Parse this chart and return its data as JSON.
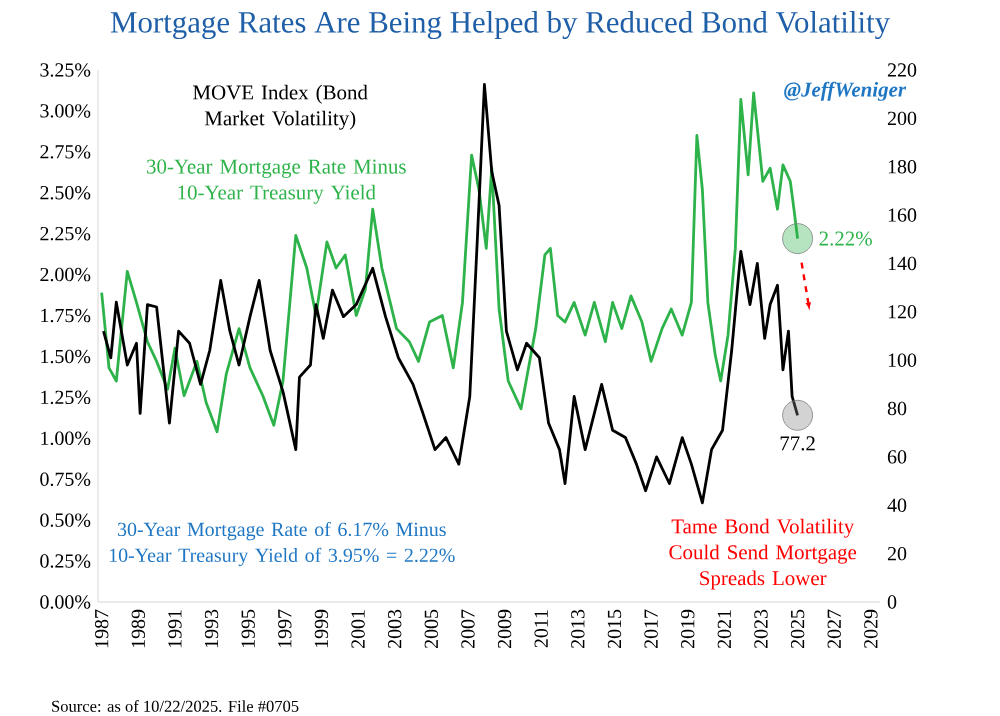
{
  "chart_data": {
    "type": "line",
    "title": "Mortgage Rates Are Being Helped by Reduced Bond Volatility",
    "xlim": [
      1986.8,
      2029.5
    ],
    "xticks": [
      1987,
      1989,
      1991,
      1993,
      1995,
      1997,
      1999,
      2001,
      2003,
      2005,
      2007,
      2009,
      2011,
      2013,
      2015,
      2017,
      2019,
      2021,
      2023,
      2025,
      2027,
      2029
    ],
    "ylim": [
      0,
      3.25
    ],
    "yticks": [
      {
        "value": 0,
        "label": "0.00%"
      },
      {
        "value": 0.25,
        "label": "0.25%"
      },
      {
        "value": 0.5,
        "label": "0.50%"
      },
      {
        "value": 0.75,
        "label": "0.75%"
      },
      {
        "value": 1,
        "label": "1.00%"
      },
      {
        "value": 1.25,
        "label": "1.25%"
      },
      {
        "value": 1.5,
        "label": "1.50%"
      },
      {
        "value": 1.75,
        "label": "1.75%"
      },
      {
        "value": 2,
        "label": "2.00%"
      },
      {
        "value": 2.25,
        "label": "2.25%"
      },
      {
        "value": 2.5,
        "label": "2.50%"
      },
      {
        "value": 2.75,
        "label": "2.75%"
      },
      {
        "value": 3,
        "label": "3.00%"
      },
      {
        "value": 3.25,
        "label": "3.25%"
      }
    ],
    "y2lim": [
      0,
      220
    ],
    "y2ticks": [
      0,
      20,
      40,
      60,
      80,
      100,
      120,
      140,
      160,
      180,
      200,
      220
    ],
    "grid": false,
    "legend": false,
    "marker": "none",
    "line_style": "solid",
    "series": [
      {
        "name": "30-Year Mortgage Rate Minus 10-Year Treasury Yield",
        "color": "#2db34a",
        "x": [
          1987.0,
          1987.4,
          1987.8,
          1988.4,
          1988.9,
          1989.5,
          1990.0,
          1990.6,
          1991.0,
          1991.5,
          1992.2,
          1992.7,
          1993.3,
          1993.8,
          1994.5,
          1995.1,
          1995.8,
          1996.4,
          1996.9,
          1997.6,
          1998.2,
          1998.7,
          1999.3,
          1999.8,
          2000.3,
          2000.9,
          2001.4,
          2001.8,
          2002.3,
          2003.1,
          2003.8,
          2004.3,
          2004.9,
          2005.6,
          2006.2,
          2006.7,
          2007.2,
          2007.6,
          2008.0,
          2008.3,
          2008.7,
          2009.2,
          2009.9,
          2010.7,
          2011.2,
          2011.5,
          2011.9,
          2012.3,
          2012.8,
          2013.4,
          2013.9,
          2014.5,
          2014.9,
          2015.4,
          2015.9,
          2016.5,
          2017.0,
          2017.6,
          2018.1,
          2018.7,
          2019.2,
          2019.5,
          2019.8,
          2020.1,
          2020.5,
          2020.8,
          2021.2,
          2021.6,
          2021.9,
          2022.3,
          2022.6,
          2023.1,
          2023.5,
          2023.9,
          2024.2,
          2024.6,
          2024.8,
          2025.0
        ],
        "values": [
          1.89,
          1.43,
          1.35,
          2.02,
          1.83,
          1.59,
          1.47,
          1.3,
          1.55,
          1.26,
          1.47,
          1.22,
          1.04,
          1.39,
          1.67,
          1.43,
          1.26,
          1.08,
          1.35,
          2.24,
          2.04,
          1.75,
          2.2,
          2.04,
          2.12,
          1.75,
          1.91,
          2.4,
          2.04,
          1.67,
          1.59,
          1.47,
          1.71,
          1.75,
          1.43,
          1.83,
          2.73,
          2.52,
          2.16,
          2.65,
          1.79,
          1.35,
          1.18,
          1.67,
          2.12,
          2.16,
          1.75,
          1.71,
          1.83,
          1.63,
          1.83,
          1.59,
          1.83,
          1.67,
          1.87,
          1.71,
          1.47,
          1.67,
          1.79,
          1.63,
          1.83,
          2.85,
          2.52,
          1.83,
          1.51,
          1.35,
          1.63,
          2.16,
          3.07,
          2.61,
          3.11,
          2.57,
          2.65,
          2.4,
          2.67,
          2.57,
          2.4,
          2.22
        ]
      },
      {
        "name": "MOVE Index (Bond Market Volatility)",
        "color": "#000000",
        "axis": "y2",
        "x": [
          1987.1,
          1987.5,
          1987.8,
          1988.4,
          1988.9,
          1989.1,
          1989.5,
          1990.0,
          1990.7,
          1991.2,
          1991.8,
          1992.4,
          1992.9,
          1993.5,
          1994.0,
          1994.5,
          1995.1,
          1995.6,
          1996.2,
          1996.9,
          1997.6,
          1997.8,
          1998.4,
          1998.7,
          1999.1,
          1999.6,
          2000.2,
          2000.9,
          2001.8,
          2002.5,
          2003.2,
          2004.0,
          2004.5,
          2005.2,
          2005.8,
          2006.5,
          2007.1,
          2007.5,
          2007.9,
          2008.3,
          2008.7,
          2009.1,
          2009.7,
          2010.2,
          2010.9,
          2011.4,
          2012.0,
          2012.3,
          2012.8,
          2013.4,
          2014.3,
          2014.9,
          2015.6,
          2016.2,
          2016.7,
          2017.3,
          2018.0,
          2018.7,
          2019.2,
          2019.8,
          2020.3,
          2020.9,
          2021.4,
          2021.9,
          2022.4,
          2022.8,
          2023.2,
          2023.5,
          2023.9,
          2024.2,
          2024.5,
          2024.7,
          2025.0
        ],
        "values": [
          112,
          101,
          124,
          98,
          107,
          78,
          123,
          122,
          74,
          112,
          107,
          90,
          104,
          133,
          112,
          98,
          118,
          133,
          104,
          87,
          63,
          93,
          98,
          123,
          109,
          129,
          118,
          123,
          138,
          118,
          101,
          90,
          79,
          63,
          68,
          57,
          85,
          148,
          214,
          178,
          164,
          112,
          96,
          107,
          101,
          74,
          63,
          49,
          85,
          63,
          90,
          71,
          68,
          57,
          46,
          60,
          49,
          68,
          57,
          41,
          63,
          71,
          104,
          145,
          123,
          140,
          109,
          123,
          131,
          96,
          112,
          85,
          77.2
        ]
      }
    ],
    "annotations": [
      "@JeffWeniger",
      "30-Year Mortgage Rate of 6.17% Minus 10-Year Treasury Yield of 3.95% = 2.22%",
      "Tame Bond Volatility Could Send Mortgage Spreads Lower",
      {
        "text": "2.22%",
        "x": 2025.0,
        "y": 2.22
      },
      "77.2",
      "Source: as of 10/22/2025. File #0705"
    ]
  }
}
